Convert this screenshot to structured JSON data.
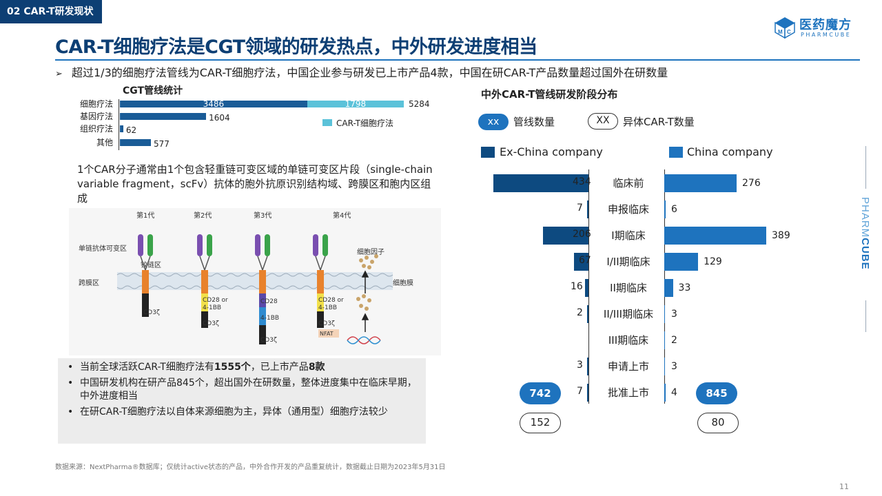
{
  "section_tag": "02 CAR-T研发现状",
  "brand": {
    "name": "医药魔方",
    "sub": "PHARMCUBE",
    "cube_letters": [
      "M",
      "C"
    ]
  },
  "title": "CAR-T细胞疗法是CGT领域的研发热点，中外研发进度相当",
  "bullet": "超过1/3的细胞疗法管线为CAR-T细胞疗法，中国企业参与研发已上市产品4款，中国在研CAR-T产品数量超过国外在研数量",
  "cgt_chart": {
    "title": "CGT管线统计",
    "categories": [
      "细胞疗法",
      "基因疗法",
      "组织疗法",
      "其他"
    ],
    "series": [
      {
        "values": [
          3486,
          1604,
          62,
          577
        ],
        "color": "#1a5c97"
      },
      {
        "name": "CAR-T细胞疗法",
        "values": [
          1798,
          0,
          0,
          0
        ],
        "color": "#5bc2d9"
      }
    ],
    "totals": [
      5284,
      1604,
      62,
      577
    ],
    "segment_labels": [
      "3486",
      "1798"
    ],
    "legend": "CAR-T细胞疗法"
  },
  "paragraph": "1个CAR分子通常由1个包含轻重链可变区域的单链可变区片段（single-chain variable fragment，scFv）抗体的胞外抗原识别结构域、跨膜区和胞内区组成",
  "diagram": {
    "generations": [
      "第1代",
      "第2代",
      "第3代",
      "第4代"
    ],
    "left_labels": {
      "scfv": "单链抗体可变区",
      "hinge": "铰链区",
      "tm": "跨膜区"
    },
    "right_labels": {
      "cytokine": "细胞因子",
      "membrane": "细胞膜"
    },
    "gen1": [
      "CD3ζ"
    ],
    "gen2": [
      "CD28 or",
      "4-1BB",
      "CD3ζ"
    ],
    "gen3": [
      "CD28",
      "4-1BB",
      "CD3ζ"
    ],
    "gen4": [
      "CD28 or",
      "4-1BB",
      "CD3ζ",
      "NFAT"
    ]
  },
  "summary": [
    {
      "pre": "当前全球活跃CAR-T细胞疗法有",
      "b1": "1555个",
      "mid": "，已上市产品",
      "b2": "8款",
      "post": ""
    },
    {
      "pre": "中国研发机构在研产品845个，超出国外在研数量，整体进度集中在临床早期，中外进度相当",
      "b1": "",
      "mid": "",
      "b2": "",
      "post": ""
    },
    {
      "pre": "在研CAR-T细胞疗法以自体来源细胞为主，异体（通用型）细胞疗法较少",
      "b1": "",
      "mid": "",
      "b2": "",
      "post": ""
    }
  ],
  "source": "数据来源：NextPharma®数据库；仅统计active状态的产品，中外合作开发的产品重复统计，数据截止日期为2023年5月31日",
  "page_number": "11",
  "side_brand": {
    "light": "PHARM",
    "bold": "CUBE"
  },
  "chart_data": {
    "type": "bar",
    "title": "中外CAR-T管线研发阶段分布",
    "categories": [
      "临床前",
      "申报临床",
      "I期临床",
      "I/II期临床",
      "II期临床",
      "II/III期临床",
      "III期临床",
      "申请上市",
      "批准上市"
    ],
    "series": [
      {
        "name": "Ex-China company",
        "values": [
          434,
          7,
          206,
          67,
          16,
          2,
          0,
          3,
          7
        ],
        "color": "#0d4a80"
      },
      {
        "name": "China company",
        "values": [
          276,
          6,
          389,
          129,
          33,
          3,
          2,
          3,
          4
        ],
        "color": "#1e73be"
      }
    ],
    "value_labels_left": [
      "434",
      "7",
      "206",
      "67",
      "16",
      "2",
      "",
      "3",
      "7"
    ],
    "value_labels_right": [
      "276",
      "6",
      "389",
      "129",
      "33",
      "3",
      "2",
      "3",
      "4"
    ],
    "key": {
      "pill": "xx",
      "pill_text": "管线数量",
      "oval": "XX",
      "oval_text": "异体CAR-T数量"
    },
    "totals": {
      "ex_china_pipelines": "742",
      "china_pipelines": "845",
      "ex_china_allogeneic": "152",
      "china_allogeneic": "80"
    },
    "legend_position": "top"
  }
}
